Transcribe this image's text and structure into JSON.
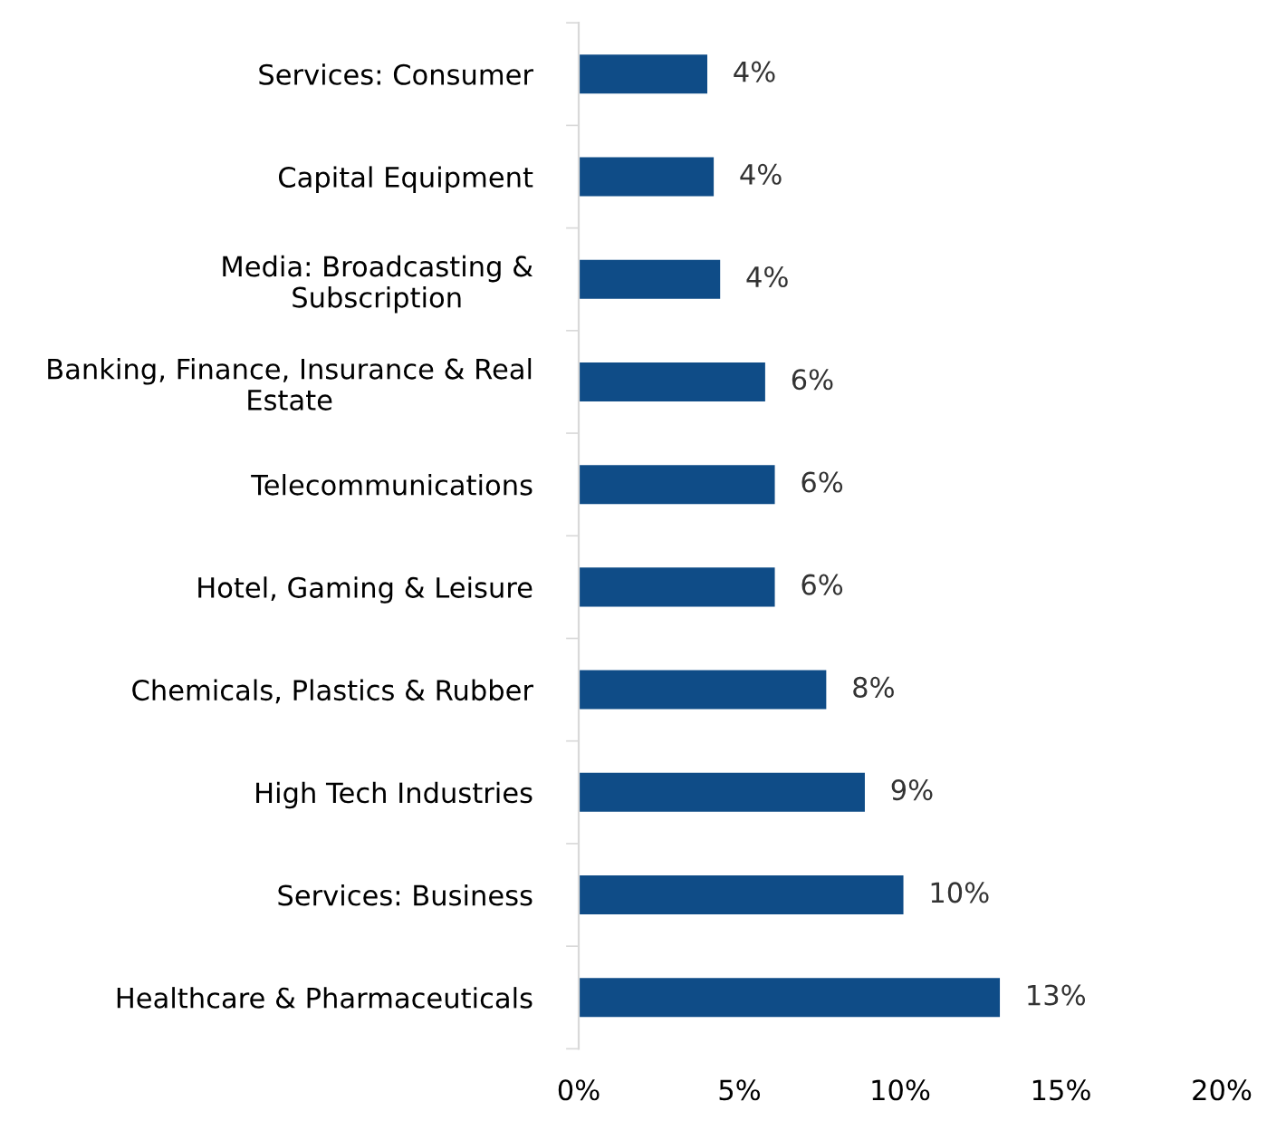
{
  "chart_data": {
    "type": "bar",
    "orientation": "horizontal",
    "categories": [
      "Services: Consumer",
      "Capital Equipment",
      "Media: Broadcasting &\nSubscription",
      "Banking, Finance, Insurance & Real\nEstate",
      "Telecommunications",
      "Hotel, Gaming & Leisure",
      "Chemicals, Plastics & Rubber",
      "High Tech Industries",
      "Services: Business",
      "Healthcare & Pharmaceuticals"
    ],
    "values": [
      4.0,
      4.2,
      4.4,
      5.8,
      6.1,
      6.1,
      7.7,
      8.9,
      10.1,
      13.1
    ],
    "value_labels": [
      "4%",
      "4%",
      "4%",
      "6%",
      "6%",
      "6%",
      "8%",
      "9%",
      "10%",
      "13%"
    ],
    "color": "#0f4c87",
    "xlim": [
      0,
      20
    ],
    "xticks": [
      {
        "value": 0,
        "label": "0%"
      },
      {
        "value": 5,
        "label": "5%"
      },
      {
        "value": 10,
        "label": "10%"
      },
      {
        "value": 15,
        "label": "15%"
      },
      {
        "value": 20,
        "label": "20%"
      }
    ],
    "grid": false
  }
}
